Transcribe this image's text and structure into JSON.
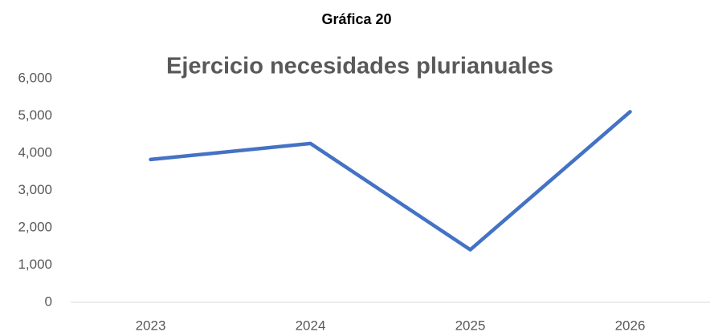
{
  "chart_data": {
    "type": "line",
    "heading": "Gráfica 20",
    "title": "Ejercicio necesidades plurianuales",
    "categories": [
      "2023",
      "2024",
      "2025",
      "2026"
    ],
    "series": [
      {
        "name": "Ejercicio",
        "color": "#4472c4",
        "values": [
          3830,
          4260,
          1410,
          5110
        ]
      }
    ],
    "ylim": [
      0,
      6000
    ],
    "yticks": [
      0,
      {
        "value": 1000,
        "label": "1,000"
      },
      {
        "value": 2000,
        "label": "2,000"
      },
      {
        "value": 3000,
        "label": "3,000"
      },
      {
        "value": 4000,
        "label": "4,000"
      },
      {
        "value": 5000,
        "label": "5,000"
      },
      {
        "value": 6000,
        "label": "6,000"
      }
    ],
    "grid": false
  }
}
